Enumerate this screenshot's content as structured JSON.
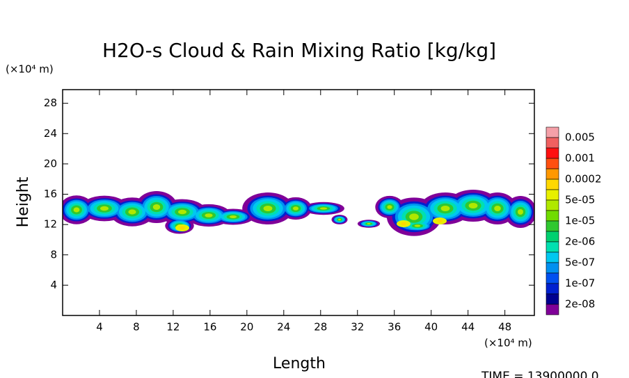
{
  "chart_data": {
    "type": "contour",
    "title": "H2O-s Cloud & Rain Mixing Ratio [kg/kg]",
    "x_label": "Length",
    "y_label": "Height",
    "x_unit": "(×10⁴ m)",
    "y_unit": "(×10⁴ m)",
    "xlim": [
      0,
      51.2
    ],
    "ylim": [
      0,
      29.8
    ],
    "xticks": [
      4,
      8,
      12,
      16,
      20,
      24,
      28,
      32,
      36,
      40,
      44,
      48
    ],
    "yticks": [
      4,
      8,
      12,
      16,
      20,
      24,
      28
    ],
    "colorbar": {
      "colors": [
        "#f5a0a8",
        "#f06060",
        "#ff1010",
        "#ff5010",
        "#ff9800",
        "#ffd800",
        "#e8f000",
        "#b0e800",
        "#70dc00",
        "#30c830",
        "#00d070",
        "#00e0b0",
        "#00c8f0",
        "#0090f0",
        "#0050f0",
        "#0020d0",
        "#000090",
        "#800098"
      ],
      "labels": [
        "0.005",
        "0.001",
        "0.0002",
        "5e-05",
        "1e-05",
        "2e-06",
        "5e-07",
        "1e-07",
        "2e-08"
      ]
    },
    "footer": "TIME = 13900000.0"
  }
}
